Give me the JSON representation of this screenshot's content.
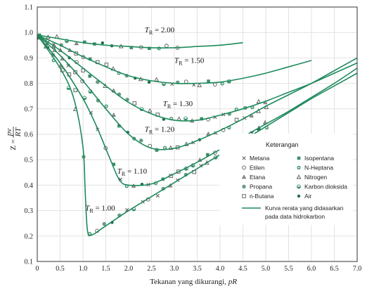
{
  "chart_data": {
    "type": "line",
    "xlabel": "Tekanan yang dikurangi, ",
    "xlabel_var": "pR",
    "ylabel_lhs": "Z = ",
    "ylabel_num": "pv",
    "ylabel_den": "RT",
    "xlim": [
      0,
      7.0
    ],
    "ylim": [
      0.1,
      1.1
    ],
    "x_ticks": [
      "0",
      "0.5",
      "1.0",
      "1.5",
      "2.0",
      "2.5",
      "3.0",
      "3.5",
      "4.0",
      "4.5",
      "5.0",
      "5.5",
      "6.0",
      "6.5",
      "7.0"
    ],
    "y_ticks": [
      "0.1",
      "0.2",
      "0.3",
      "0.4",
      "0.5",
      "0.6",
      "0.7",
      "0.8",
      "0.9",
      "1.0",
      "1.1"
    ],
    "grid": true,
    "line_color": "#1e8a5c",
    "series": [
      {
        "name": "TR = 2.00",
        "label_main": "T",
        "label_sub": "R",
        "label_rest": " = 2.00",
        "label_at": [
          2.35,
          1.0
        ],
        "x": [
          0,
          0.5,
          1.0,
          1.5,
          2.0,
          2.5,
          3.0,
          3.5,
          4.0,
          4.5
        ],
        "y": [
          0.99,
          0.975,
          0.96,
          0.95,
          0.945,
          0.94,
          0.94,
          0.945,
          0.95,
          0.96
        ]
      },
      {
        "name": "TR = 1.50",
        "label_main": "T",
        "label_sub": "R",
        "label_rest": " = 1.50",
        "label_at": [
          3.0,
          0.88
        ],
        "x": [
          0,
          0.5,
          1.0,
          1.5,
          2.0,
          2.5,
          3.0,
          3.5,
          4.0,
          4.5,
          5.0,
          5.5,
          6.0
        ],
        "y": [
          0.99,
          0.95,
          0.905,
          0.865,
          0.83,
          0.81,
          0.8,
          0.8,
          0.805,
          0.82,
          0.84,
          0.865,
          0.89
        ]
      },
      {
        "name": "TR = 1.30",
        "label_main": "T",
        "label_sub": "R",
        "label_rest": " = 1.30",
        "label_at": [
          2.75,
          0.71
        ],
        "x": [
          0,
          0.5,
          1.0,
          1.5,
          2.0,
          2.5,
          3.0,
          3.5,
          4.0,
          4.5,
          5.0,
          5.5,
          6.0,
          6.5,
          7.0
        ],
        "y": [
          0.99,
          0.93,
          0.86,
          0.79,
          0.725,
          0.68,
          0.655,
          0.655,
          0.675,
          0.7,
          0.73,
          0.765,
          0.8,
          0.84,
          0.88
        ]
      },
      {
        "name": "TR = 1.20",
        "label_main": "T",
        "label_sub": "R",
        "label_rest": " = 1.20",
        "label_at": [
          2.35,
          0.61
        ],
        "x": [
          0,
          0.5,
          1.0,
          1.5,
          2.0,
          2.5,
          3.0,
          3.5,
          4.0,
          4.5,
          5.0,
          5.5,
          6.0,
          6.5,
          7.0
        ],
        "y": [
          0.99,
          0.91,
          0.81,
          0.7,
          0.6,
          0.545,
          0.545,
          0.575,
          0.615,
          0.66,
          0.71,
          0.755,
          0.8,
          0.85,
          0.9
        ]
      },
      {
        "name": "TR = 1.10",
        "label_main": "T",
        "label_sub": "R",
        "label_rest": " = 1.10",
        "label_at": [
          1.75,
          0.445
        ],
        "x": [
          0,
          0.5,
          1.0,
          1.3,
          1.6,
          1.8,
          2.0,
          2.5,
          3.0,
          3.5,
          4.0,
          4.5,
          5.0,
          5.5,
          6.0,
          6.5,
          7.0
        ],
        "y": [
          0.99,
          0.88,
          0.74,
          0.63,
          0.5,
          0.42,
          0.4,
          0.405,
          0.445,
          0.49,
          0.54,
          0.59,
          0.64,
          0.69,
          0.745,
          0.8,
          0.86
        ]
      },
      {
        "name": "TR = 1.00",
        "label_main": "T",
        "label_sub": "R",
        "label_rest": " = 1.00",
        "label_at": [
          1.05,
          0.3
        ],
        "x": [
          0,
          0.5,
          0.8,
          1.0,
          1.05,
          1.1,
          1.2,
          1.5,
          2.0,
          2.5,
          3.0,
          3.5,
          4.0,
          4.5,
          5.0,
          5.5,
          6.0,
          6.5,
          7.0
        ],
        "y": [
          0.99,
          0.86,
          0.74,
          0.55,
          0.37,
          0.22,
          0.205,
          0.24,
          0.3,
          0.355,
          0.41,
          0.465,
          0.52,
          0.575,
          0.63,
          0.685,
          0.74,
          0.79,
          0.84
        ]
      }
    ],
    "legend": {
      "title": "Keterangan",
      "items": [
        {
          "label": "Metana",
          "marker": "x"
        },
        {
          "label": "Isopentana",
          "marker": "filled-square"
        },
        {
          "label": "Etilen",
          "marker": "open-circle"
        },
        {
          "label": "N-Heptana",
          "marker": "circle-cross"
        },
        {
          "label": "Etana",
          "marker": "triangle"
        },
        {
          "label": "Nitrogen",
          "marker": "open-triangle"
        },
        {
          "label": "Propana",
          "marker": "filled-circle"
        },
        {
          "label": "Karbon dioksida",
          "marker": "half-circle"
        },
        {
          "label": "n-Butana",
          "marker": "open-square"
        },
        {
          "label": "Air",
          "marker": "dot"
        }
      ],
      "line_label_1": "Kurva rerata yang didasarkan",
      "line_label_2": "pada data hidrokarbon"
    }
  }
}
